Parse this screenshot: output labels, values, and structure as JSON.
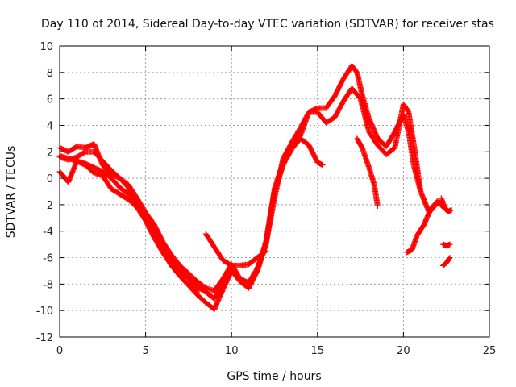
{
  "chart_data": {
    "type": "scatter",
    "title": "Day 110 of 2014, Sidereal Day-to-day VTEC variation (SDTVAR) for receiver stas",
    "xlabel": "GPS time / hours",
    "ylabel": "SDTVAR / TECUs",
    "xlim": [
      0,
      25
    ],
    "ylim": [
      -12,
      10
    ],
    "x_ticks": [
      "0",
      "5",
      "10",
      "15",
      "20",
      "25"
    ],
    "y_ticks": [
      "10",
      "8",
      "6",
      "4",
      "2",
      "0",
      "-2",
      "-4",
      "-6",
      "-8",
      "-10",
      "-12"
    ],
    "grid": true,
    "marker": "plus",
    "color": "#ff0000",
    "series": [
      {
        "x": [
          0,
          0.5,
          1,
          1.5,
          2,
          2.5,
          3,
          3.5,
          4,
          4.5,
          5,
          5.5,
          6,
          6.5,
          7,
          7.5,
          8,
          8.5,
          9,
          9.5,
          10,
          10.5,
          11,
          11.5,
          12,
          12.5,
          13,
          13.5,
          14,
          14.5,
          15,
          15.5,
          16,
          16.5,
          17,
          17.3,
          17.6,
          18,
          18.5,
          19,
          19.5,
          20,
          20.3,
          20.6,
          21,
          21.5,
          22,
          22.5
        ],
        "y": [
          2.3,
          2.0,
          2.4,
          2.3,
          2.6,
          1.0,
          0.3,
          0.0,
          -0.5,
          -1.5,
          -2.6,
          -3.5,
          -4.8,
          -5.8,
          -6.6,
          -7.2,
          -7.8,
          -8.3,
          -8.5,
          -7.6,
          -6.5,
          -7.6,
          -7.9,
          -6.8,
          -5.0,
          -1.5,
          1.5,
          2.7,
          3.8,
          5.0,
          5.3,
          5.3,
          6.2,
          7.5,
          8.5,
          8.0,
          6.3,
          4.5,
          3.0,
          2.4,
          3.5,
          4.8,
          3.5,
          1.0,
          -1.0,
          -2.6,
          -1.8,
          -2.4
        ]
      },
      {
        "x": [
          0,
          0.5,
          1,
          1.5,
          2,
          2.5,
          3,
          3.5,
          4,
          4.5,
          5,
          5.5,
          6,
          6.5,
          7,
          7.5,
          8,
          8.5,
          9,
          9.5,
          10,
          10.5,
          11,
          11.5,
          12,
          12.5,
          13,
          13.5,
          14,
          14.5,
          15,
          15.5,
          16,
          16.5,
          17,
          17.5,
          18,
          18.5,
          19,
          19.5,
          20,
          20.3,
          20.6,
          21
        ],
        "y": [
          1.6,
          1.4,
          1.6,
          2.0,
          2.0,
          1.3,
          0.6,
          0.0,
          -0.7,
          -1.8,
          -2.8,
          -4.0,
          -5.3,
          -6.3,
          -7.0,
          -7.6,
          -8.2,
          -8.6,
          -9.1,
          -8.0,
          -6.8,
          -7.7,
          -8.0,
          -6.9,
          -4.8,
          -0.8,
          1.2,
          2.5,
          3.2,
          5.0,
          5.0,
          4.2,
          4.6,
          5.8,
          6.8,
          6.0,
          3.5,
          2.5,
          1.8,
          2.3,
          5.6,
          5.0,
          2.6,
          -1.0
        ]
      },
      {
        "x": [
          0,
          0.5,
          1,
          1.5,
          2,
          2.5,
          3,
          3.5,
          4,
          4.5,
          5,
          5.5,
          6,
          6.5,
          7,
          7.5,
          8,
          8.5,
          9,
          9.5,
          10,
          10.5,
          11,
          11.5,
          12,
          12.5,
          13,
          13.5,
          14,
          14.5,
          15,
          15.3
        ],
        "y": [
          1.7,
          1.5,
          1.3,
          1.1,
          0.8,
          0.5,
          0.0,
          -0.7,
          -1.2,
          -2.2,
          -3.2,
          -4.5,
          -5.6,
          -6.6,
          -7.4,
          -8.1,
          -8.8,
          -9.4,
          -9.9,
          -8.4,
          -7.0,
          -7.8,
          -8.3,
          -7.0,
          -5.0,
          -1.0,
          1.0,
          2.2,
          3.0,
          2.5,
          1.2,
          1.0
        ]
      },
      {
        "x": [
          0,
          0.2,
          0.5,
          1,
          1.5,
          2,
          2.5,
          3,
          3.5,
          4,
          4.5,
          5,
          5.5,
          6,
          6.5,
          7,
          7.5,
          8
        ],
        "y": [
          0.5,
          0.2,
          -0.3,
          1.3,
          1.0,
          0.4,
          0.2,
          -0.8,
          -1.2,
          -1.6,
          -2.2,
          -3.0,
          -3.9,
          -5.0,
          -6.0,
          -6.8,
          -7.5,
          -8.6
        ]
      },
      {
        "x": [
          8.5,
          9,
          9.5,
          10,
          10.5,
          11,
          11.5,
          12
        ],
        "y": [
          -4.2,
          -5.2,
          -6.2,
          -6.6,
          -6.6,
          -6.5,
          -6.0,
          -5.5
        ]
      },
      {
        "x": [
          17.3,
          17.6,
          18,
          18.3,
          18.5
        ],
        "y": [
          3.0,
          2.3,
          0.8,
          -0.5,
          -2.1
        ]
      },
      {
        "x": [
          20.2,
          20.5,
          20.8,
          21.2,
          21.6,
          22.0
        ],
        "y": [
          -5.6,
          -5.4,
          -4.3,
          -3.5,
          -2.3,
          -1.7
        ]
      },
      {
        "x": [
          22.2,
          22.4,
          22.6,
          22.8
        ],
        "y": [
          -1.5,
          -2.2,
          -2.5,
          -2.4
        ]
      },
      {
        "x": [
          22.3,
          22.5,
          22.7
        ],
        "y": [
          -5.0,
          -5.1,
          -5.0
        ]
      },
      {
        "x": [
          22.3,
          22.5,
          22.7
        ],
        "y": [
          -6.6,
          -6.4,
          -6.0
        ]
      }
    ]
  }
}
